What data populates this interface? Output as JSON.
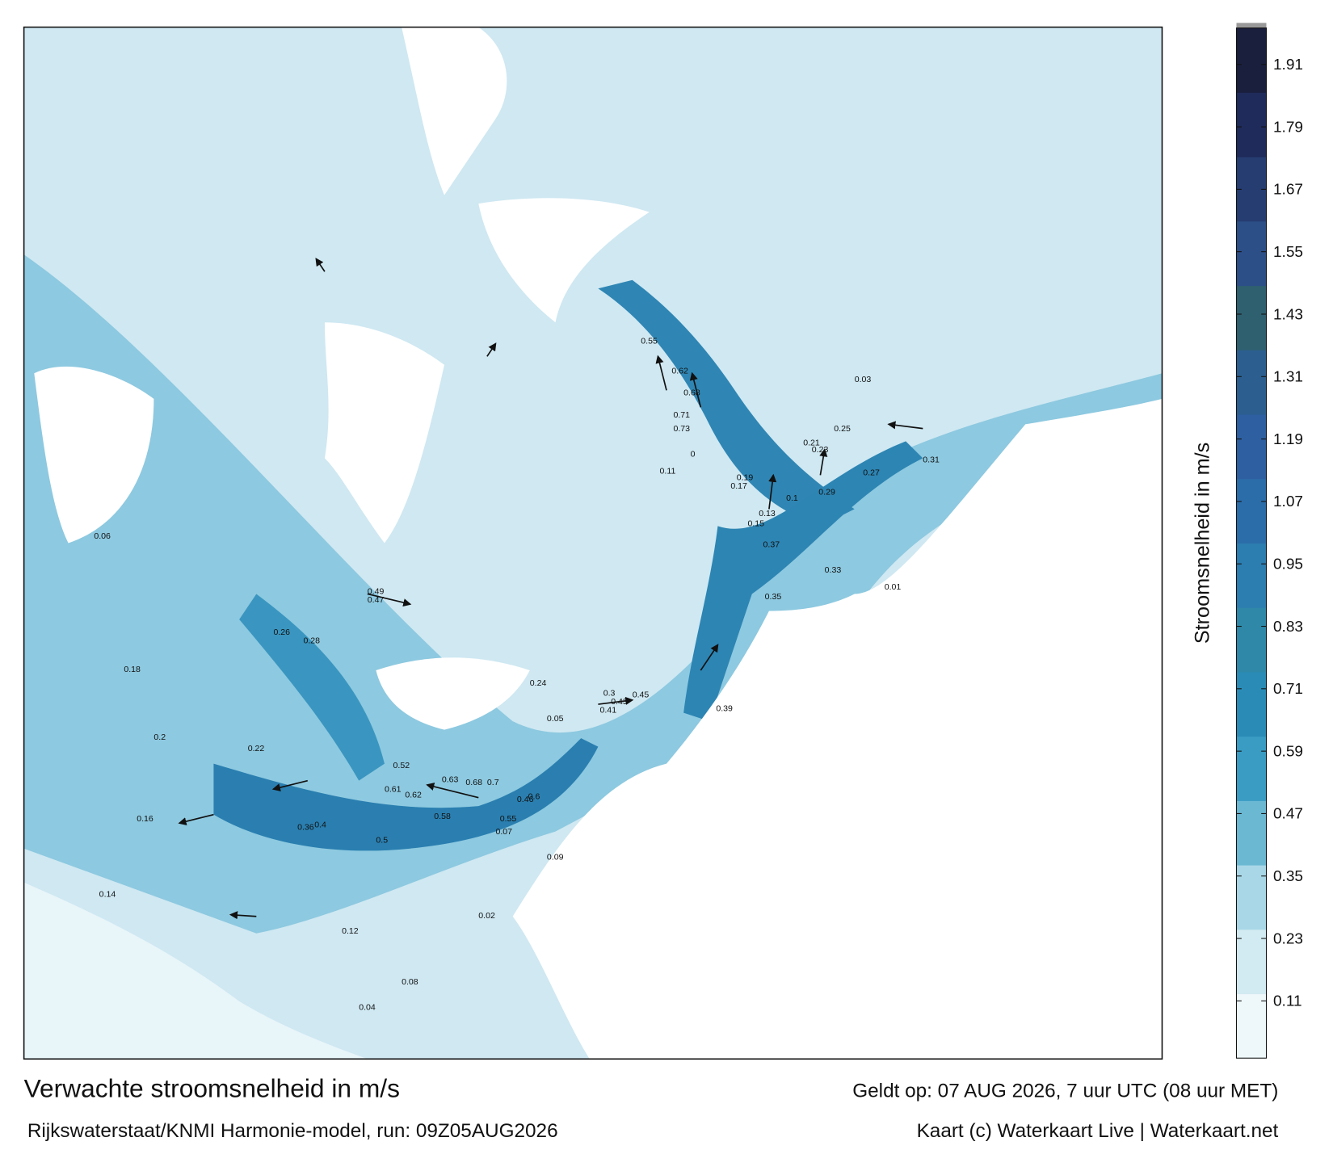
{
  "map": {
    "title": "Verwachte stroomsnelheid in m/s",
    "valid_time": "Geldt op: 07 AUG 2026, 7 uur UTC (08 uur MET)",
    "source": "Rijkswaterstaat/KNMI Harmonie-model, run: 09Z05AUG2026",
    "credit": "Kaart (c) Waterkaart Live | Waterkaart.net",
    "colorbar": {
      "label": "Stroomsnelheid in m/s",
      "clim": [
        0,
        1.98
      ],
      "ticks": [
        0.11,
        0.23,
        0.35,
        0.47,
        0.59,
        0.71,
        0.83,
        0.95,
        1.07,
        1.19,
        1.31,
        1.43,
        1.55,
        1.67,
        1.79,
        1.91
      ],
      "colors": [
        "#eef7fa",
        "#d2eaf2",
        "#a9d7e7",
        "#6bb8d3",
        "#3a9cc3",
        "#2a8cb6",
        "#2f88a8",
        "#2c7db0",
        "#2b6da9",
        "#2e5fa0",
        "#2c5f90",
        "#2f6070",
        "#2d4f88",
        "#263d72",
        "#1f2b5a",
        "#1a1f3e"
      ]
    },
    "speed_labels": [
      0.71,
      0.73,
      0.68,
      0.62,
      0.55,
      0.52,
      0.49,
      0.47,
      0.45,
      0.43,
      0.41,
      0.39,
      0.37,
      0.35,
      0.33,
      0.31,
      0.29,
      0.27,
      0.25,
      0.23,
      0.21,
      0.19,
      0.17,
      0.15,
      0.13,
      0.11,
      0.09,
      0.07,
      0.05,
      0.03,
      0.7,
      0.68,
      0.63,
      0.62,
      0.61,
      0.58,
      0.55,
      0.46,
      0.3,
      0.24,
      0.22,
      0.2,
      0.16,
      0.14,
      0.12,
      0.1,
      0.08,
      0.06,
      0.04,
      0.02,
      0.6,
      0.5,
      0.4,
      0.36,
      0.28,
      0.26,
      0.18,
      0.01,
      0
    ]
  }
}
